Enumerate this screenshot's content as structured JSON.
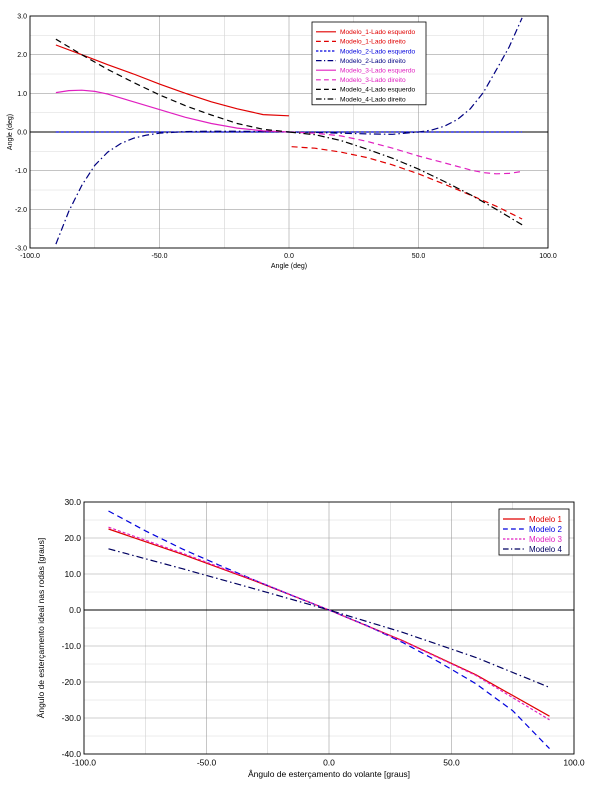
{
  "chart_data": [
    {
      "type": "line",
      "title": "",
      "xlabel": "Angle (deg)",
      "ylabel": "Angle (deg)",
      "xlim": [
        -100,
        100
      ],
      "ylim": [
        -3,
        3
      ],
      "x_ticks": [
        "-100.0",
        "-50.0",
        "0.0",
        "50.0",
        "100.0"
      ],
      "y_ticks": [
        "3.0",
        "2.0",
        "1.0",
        "0.0",
        "-1.0",
        "-2.0",
        "-3.0"
      ],
      "grid": true,
      "legend_position": "top-right",
      "series": [
        {
          "name": "Modelo_1-Lado esquerdo",
          "color": "#e00000",
          "dash": "solid",
          "x": [
            -90,
            -80,
            -70,
            -60,
            -50,
            -40,
            -30,
            -20,
            -10,
            0
          ],
          "y": [
            2.25,
            2.0,
            1.74,
            1.5,
            1.24,
            1.0,
            0.78,
            0.6,
            0.45,
            0.42
          ]
        },
        {
          "name": "Modelo_1-Lado direito",
          "color": "#e00000",
          "dash": "dash",
          "x": [
            1,
            10,
            20,
            30,
            40,
            50,
            60,
            70,
            80,
            90
          ],
          "y": [
            -0.38,
            -0.42,
            -0.52,
            -0.66,
            -0.85,
            -1.08,
            -1.35,
            -1.63,
            -1.92,
            -2.25
          ]
        },
        {
          "name": "Modelo_2-Lado esquerdo",
          "color": "#0000dd",
          "dash": "shortdash",
          "x": [
            -90,
            -50,
            0,
            50,
            90
          ],
          "y": [
            0.0,
            0.0,
            0.0,
            0.0,
            0.0
          ]
        },
        {
          "name": "Modelo_2-Lado direito",
          "color": "#000080",
          "dash": "dashdot",
          "x": [
            -90,
            -85,
            -80,
            -75,
            -70,
            -65,
            -60,
            -55,
            -50,
            -40,
            -30,
            -20,
            -10,
            0,
            10,
            20,
            30,
            40,
            50,
            55,
            60,
            65,
            70,
            75,
            80,
            85,
            90
          ],
          "y": [
            -2.9,
            -2.05,
            -1.38,
            -0.86,
            -0.52,
            -0.3,
            -0.16,
            -0.08,
            -0.03,
            0.01,
            0.02,
            0.02,
            0.01,
            0.0,
            -0.01,
            -0.03,
            -0.05,
            -0.06,
            0.0,
            0.05,
            0.15,
            0.32,
            0.6,
            1.02,
            1.6,
            2.2,
            2.95
          ]
        },
        {
          "name": "Modelo_3-Lado esquerdo",
          "color": "#e020c0",
          "dash": "solid",
          "x": [
            -90,
            -85,
            -80,
            -75,
            -70,
            -60,
            -50,
            -40,
            -30,
            -20,
            -10,
            0
          ],
          "y": [
            1.02,
            1.07,
            1.08,
            1.05,
            0.98,
            0.78,
            0.58,
            0.38,
            0.22,
            0.1,
            0.03,
            0.0
          ]
        },
        {
          "name": "Modelo_3-Lado direito",
          "color": "#e020c0",
          "dash": "dash",
          "x": [
            0,
            10,
            20,
            30,
            40,
            50,
            60,
            70,
            75,
            80,
            85,
            90
          ],
          "y": [
            0.0,
            -0.03,
            -0.1,
            -0.24,
            -0.42,
            -0.62,
            -0.8,
            -0.98,
            -1.05,
            -1.08,
            -1.07,
            -1.02
          ]
        },
        {
          "name": "Modelo_4-Lado esquerdo",
          "color": "#000000",
          "dash": "dash",
          "x": [
            -90,
            -80,
            -70,
            -60,
            -50,
            -40,
            -30,
            -20,
            -10,
            0
          ],
          "y": [
            2.4,
            2.0,
            1.62,
            1.28,
            0.96,
            0.68,
            0.44,
            0.22,
            0.07,
            0.0
          ]
        },
        {
          "name": "Modelo_4-Lado direito",
          "color": "#000000",
          "dash": "dashdot",
          "x": [
            0,
            10,
            20,
            30,
            40,
            50,
            60,
            70,
            80,
            90
          ],
          "y": [
            0.0,
            -0.07,
            -0.22,
            -0.44,
            -0.68,
            -0.96,
            -1.28,
            -1.62,
            -2.0,
            -2.4
          ]
        }
      ]
    },
    {
      "type": "line",
      "title": "",
      "xlabel": "Ângulo de esterçamento do volante [graus]",
      "ylabel": "Ângulo de esterçamento ideal nas rodas [graus]",
      "xlim": [
        -100,
        100
      ],
      "ylim": [
        -40,
        30
      ],
      "x_ticks": [
        "-100.0",
        "-50.0",
        "0.0",
        "50.0",
        "100.0"
      ],
      "y_ticks": [
        "30.0",
        "20.0",
        "10.0",
        "0.0",
        "-10.0",
        "-20.0",
        "-30.0",
        "-40.0"
      ],
      "grid": true,
      "legend_position": "top-right",
      "series": [
        {
          "name": "Modelo 1",
          "color": "#e00000",
          "dash": "solid",
          "x": [
            -90,
            -60,
            -30,
            0,
            30,
            60,
            90
          ],
          "y": [
            22.5,
            15.5,
            8.0,
            0.0,
            -8.5,
            -18.0,
            -29.5
          ]
        },
        {
          "name": "Modelo 2",
          "color": "#0000dd",
          "dash": "dash",
          "x": [
            -90,
            -75,
            -60,
            -45,
            -30,
            -15,
            0,
            15,
            30,
            45,
            60,
            75,
            90
          ],
          "y": [
            27.5,
            22.0,
            17.0,
            12.5,
            8.2,
            4.0,
            0.0,
            -4.2,
            -9.0,
            -14.5,
            -20.5,
            -28.0,
            -38.5
          ]
        },
        {
          "name": "Modelo 3",
          "color": "#e020c0",
          "dash": "shortdash",
          "x": [
            -90,
            -60,
            -30,
            0,
            30,
            60,
            90
          ],
          "y": [
            23.0,
            15.8,
            8.2,
            0.0,
            -8.6,
            -18.2,
            -30.5
          ]
        },
        {
          "name": "Modelo 4",
          "color": "#000060",
          "dash": "dashdot",
          "x": [
            -90,
            -60,
            -30,
            0,
            30,
            60,
            90
          ],
          "y": [
            17.0,
            11.5,
            5.8,
            0.0,
            -6.2,
            -13.2,
            -21.5
          ]
        }
      ]
    }
  ]
}
